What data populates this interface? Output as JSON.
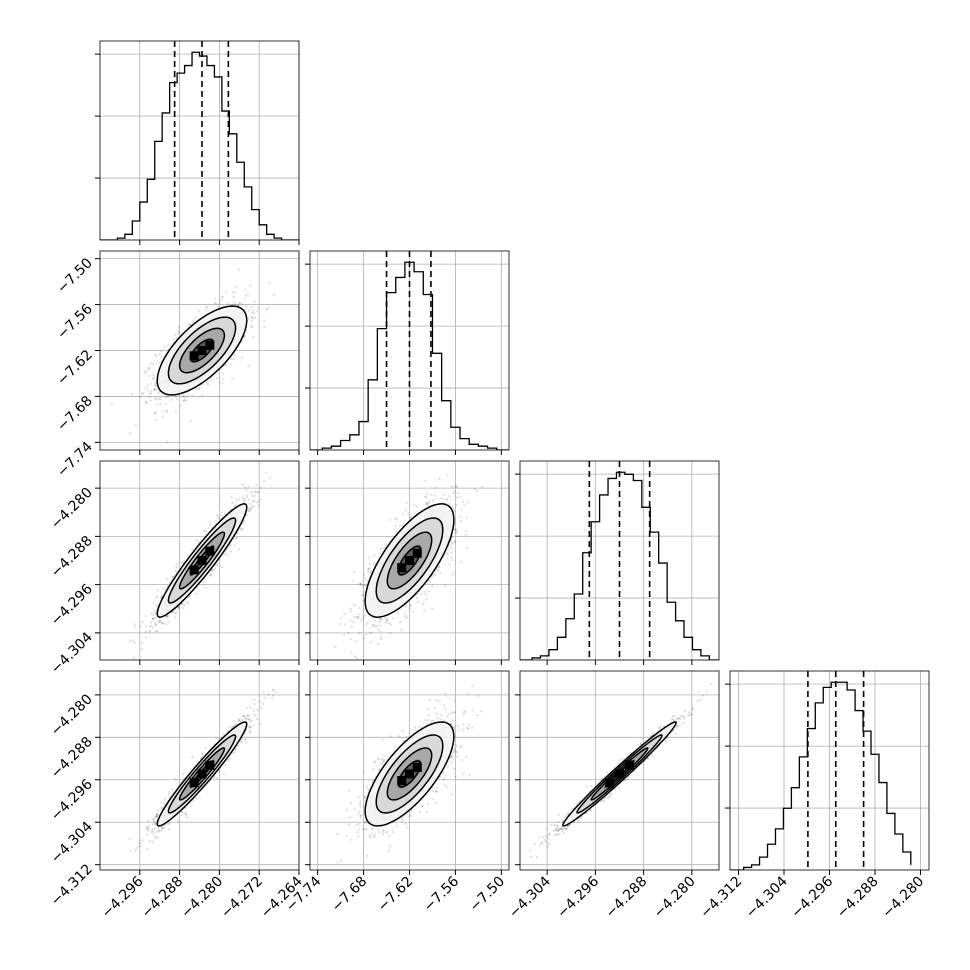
{
  "chart_data": {
    "type": "corner",
    "grid": true,
    "parameters": [
      {
        "xlim": [
          -4.304,
          -4.264
        ],
        "xticks": [
          "−4.296",
          "−4.288",
          "−4.280",
          "−4.272",
          "−4.264"
        ],
        "xtick_values": [
          -4.296,
          -4.288,
          -4.28,
          -4.272,
          -4.264
        ],
        "ylim": [
          -7.75,
          -7.49
        ],
        "yticks": [
          "−7.50",
          "−7.56",
          "−7.62",
          "−7.68",
          "−7.74"
        ],
        "ytick_values": [
          -7.5,
          -7.56,
          -7.62,
          -7.68,
          -7.74
        ]
      },
      {
        "xlim": [
          -7.75,
          -7.49
        ],
        "xticks": [
          "−7.74",
          "−7.68",
          "−7.62",
          "−7.56",
          "−7.50"
        ],
        "xtick_values": [
          -7.74,
          -7.68,
          -7.62,
          -7.56,
          -7.5
        ],
        "ylim": [
          -4.3085,
          -4.2755
        ],
        "yticks": [
          "−4.280",
          "−4.288",
          "−4.296",
          "−4.304"
        ],
        "ytick_values": [
          -4.28,
          -4.288,
          -4.296,
          -4.304
        ]
      },
      {
        "xlim": [
          -4.3085,
          -4.2755
        ],
        "xticks": [
          "−4.304",
          "−4.296",
          "−4.288",
          "−4.280"
        ],
        "xtick_values": [
          -4.304,
          -4.296,
          -4.288,
          -4.28
        ],
        "ylim": [
          -4.313,
          -4.2755
        ],
        "yticks": [
          "−4.280",
          "−4.288",
          "−4.296",
          "−4.304",
          "−4.312"
        ],
        "ytick_values": [
          -4.28,
          -4.288,
          -4.296,
          -4.304,
          -4.312
        ]
      },
      {
        "xlim": [
          -4.3135,
          -4.2785
        ],
        "xticks": [
          "−4.312",
          "−4.304",
          "−4.296",
          "−4.288",
          "−4.280"
        ],
        "xtick_values": [
          -4.312,
          -4.304,
          -4.296,
          -4.288,
          -4.28
        ]
      }
    ],
    "histograms": [
      {
        "param": 0,
        "quantiles": [
          -4.289,
          -4.2835,
          -4.2782
        ],
        "bin_edges": [
          -4.3005,
          -4.299,
          -4.2975,
          -4.296,
          -4.2945,
          -4.293,
          -4.2915,
          -4.29,
          -4.2885,
          -4.287,
          -4.2855,
          -4.284,
          -4.2825,
          -4.281,
          -4.2795,
          -4.278,
          -4.2765,
          -4.275,
          -4.2735,
          -4.272,
          -4.2705,
          -4.269,
          -4.2675
        ],
        "counts": [
          1,
          3,
          10,
          20,
          32,
          52,
          67,
          83,
          88,
          92,
          99,
          97,
          92,
          86,
          68,
          56,
          41,
          28,
          16,
          8,
          3,
          1
        ]
      },
      {
        "param": 1,
        "quantiles": [
          -7.65,
          -7.62,
          -7.592
        ],
        "bin_edges": [
          -7.734,
          -7.722,
          -7.71,
          -7.698,
          -7.686,
          -7.674,
          -7.662,
          -7.65,
          -7.638,
          -7.626,
          -7.614,
          -7.602,
          -7.59,
          -7.578,
          -7.566,
          -7.554,
          -7.542,
          -7.53,
          -7.518,
          -7.506
        ],
        "counts": [
          1,
          2,
          5,
          8,
          15,
          37,
          64,
          83,
          91,
          99,
          94,
          82,
          51,
          26,
          12,
          6,
          3,
          2,
          1
        ]
      },
      {
        "param": 2,
        "quantiles": [
          -4.297,
          -4.292,
          -4.287
        ],
        "bin_edges": [
          -4.3065,
          -4.3051,
          -4.3037,
          -4.3023,
          -4.3009,
          -4.2995,
          -4.2981,
          -4.2967,
          -4.2953,
          -4.2939,
          -4.2925,
          -4.2911,
          -4.2897,
          -4.2883,
          -4.2869,
          -4.2855,
          -4.2841,
          -4.2827,
          -4.2813,
          -4.2799,
          -4.2785,
          -4.2771
        ],
        "counts": [
          1,
          2,
          5,
          11,
          20,
          32,
          52,
          67,
          80,
          88,
          91,
          90,
          87,
          74,
          62,
          47,
          28,
          19,
          11,
          5,
          2
        ]
      },
      {
        "param": 3,
        "quantiles": [
          -4.2998,
          -4.2949,
          -4.29
        ],
        "bin_edges": [
          -4.3111,
          -4.3097,
          -4.3083,
          -4.3069,
          -4.3055,
          -4.3041,
          -4.3027,
          -4.3013,
          -4.2999,
          -4.2985,
          -4.2971,
          -4.2957,
          -4.2943,
          -4.2929,
          -4.2915,
          -4.2901,
          -4.2887,
          -4.2873,
          -4.2859,
          -4.2845,
          -4.2831,
          -4.2817
        ],
        "counts": [
          1,
          2,
          5,
          10,
          16,
          24,
          32,
          44,
          55,
          65,
          71,
          73,
          73,
          70,
          62,
          54,
          45,
          34,
          22,
          14,
          7,
          2
        ]
      }
    ],
    "pairs": [
      {
        "x": 0,
        "y": 1,
        "center": [
          -4.2835,
          -7.62
        ],
        "sd": [
          0.0045,
          0.029
        ],
        "rho": 0.68
      },
      {
        "x": 0,
        "y": 2,
        "center": [
          -4.2835,
          -4.292
        ],
        "sd": [
          0.0045,
          0.0047
        ],
        "rho": 0.94
      },
      {
        "x": 1,
        "y": 2,
        "center": [
          -7.62,
          -4.292
        ],
        "sd": [
          0.029,
          0.0047
        ],
        "rho": 0.72
      },
      {
        "x": 0,
        "y": 3,
        "center": [
          -4.2835,
          -4.2949
        ],
        "sd": [
          0.0045,
          0.0049
        ],
        "rho": 0.96
      },
      {
        "x": 1,
        "y": 3,
        "center": [
          -7.62,
          -4.2949
        ],
        "sd": [
          0.029,
          0.0049
        ],
        "rho": 0.72
      },
      {
        "x": 2,
        "y": 3,
        "center": [
          -4.292,
          -4.2949
        ],
        "sd": [
          0.0047,
          0.0049
        ],
        "rho": 0.985
      }
    ]
  }
}
